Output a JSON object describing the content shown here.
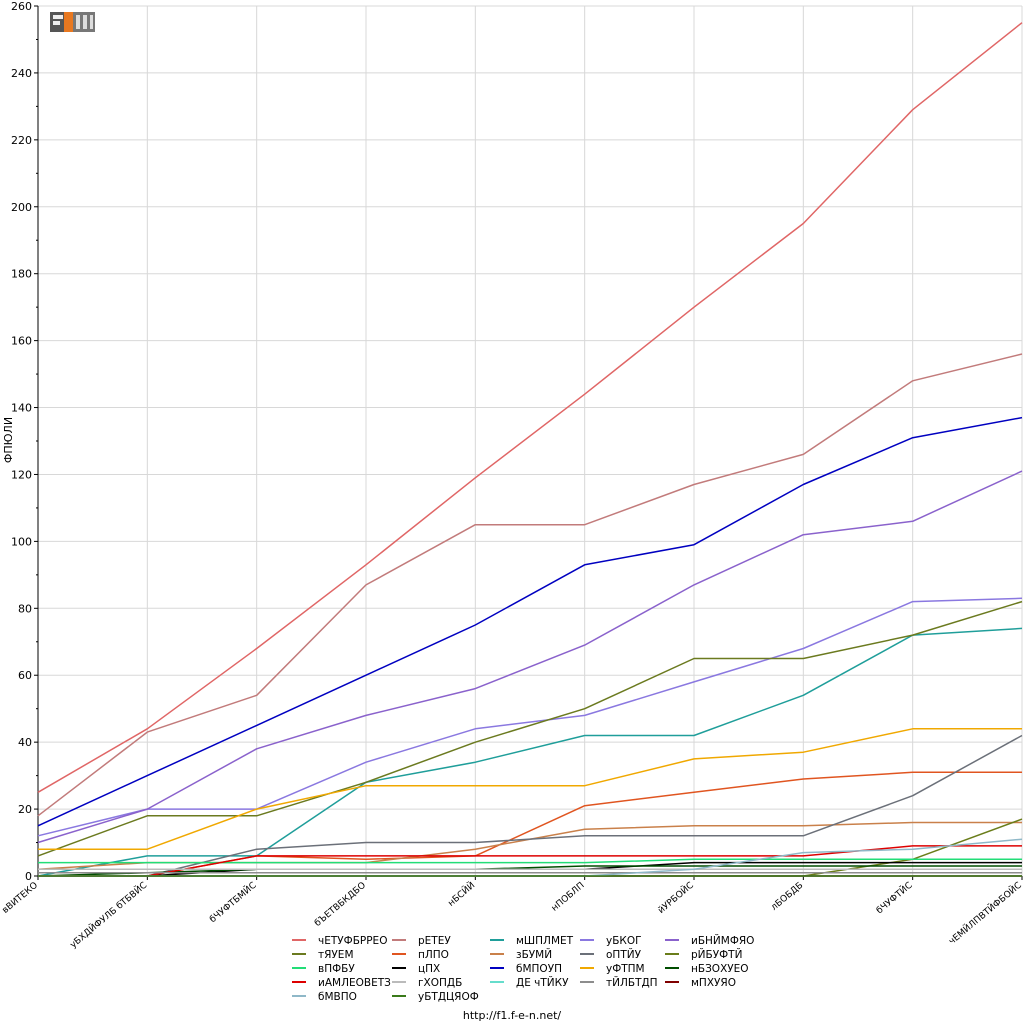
{
  "footer": {
    "url": "http://f1.f-e-n.net/"
  },
  "logo": {
    "icon": "fen-logo-icon"
  },
  "chart_data": {
    "type": "line",
    "ylabel": "ФПЮЛИ",
    "xlabel": "",
    "ylim": [
      0,
      260
    ],
    "yticks": [
      0,
      20,
      40,
      60,
      80,
      100,
      120,
      140,
      160,
      180,
      200,
      220,
      240,
      260
    ],
    "grid": true,
    "legend_position": "bottom",
    "categories": [
      "вВИТЕКО",
      "уБХДЙФУЛБ бТБВЙС",
      "бЧУФТБМЙС",
      "бЪЕТВБКДБО",
      "нБСЙЙ",
      "нПОБЛП",
      "йУРБОЙС",
      "лБОБДБ",
      "бЧУФТЙС",
      "чЕМЙЛПВТЙФБОЙС"
    ],
    "series": [
      {
        "name": "чЕТУФБРРЕО",
        "color": "#e06666",
        "values": [
          25,
          44,
          68,
          93,
          119,
          144,
          170,
          195,
          229,
          255
        ]
      },
      {
        "name": "рЕТЕУ",
        "color": "#c27b7b",
        "values": [
          18,
          43,
          54,
          87,
          105,
          105,
          117,
          126,
          148,
          156
        ]
      },
      {
        "name": "мШПЛМЕТ",
        "color": "#1f9e9a",
        "values": [
          0,
          6,
          6,
          28,
          34,
          42,
          42,
          54,
          72,
          74
        ]
      },
      {
        "name": "уБКОГ",
        "color": "#8a78e0",
        "values": [
          12,
          20,
          20,
          34,
          44,
          48,
          58,
          68,
          82,
          83
        ]
      },
      {
        "name": "иБНЙМФЯО",
        "color": "#8a62cc",
        "values": [
          10,
          20,
          38,
          48,
          56,
          69,
          87,
          102,
          106,
          121
        ]
      },
      {
        "name": "тЯУЕМ",
        "color": "#6b7a1f",
        "values": [
          6,
          18,
          18,
          28,
          40,
          50,
          65,
          65,
          72,
          82
        ]
      },
      {
        "name": "пЛПО",
        "color": "#e05520",
        "values": [
          0,
          0,
          6,
          5,
          6,
          21,
          25,
          29,
          31,
          31
        ]
      },
      {
        "name": "зБУМЙ",
        "color": "#c9804a",
        "values": [
          2,
          4,
          4,
          4,
          8,
          14,
          15,
          15,
          16,
          16
        ]
      },
      {
        "name": "оПТЙУ",
        "color": "#6b7079",
        "values": [
          0,
          0,
          8,
          10,
          10,
          12,
          12,
          12,
          24,
          42
        ]
      },
      {
        "name": "рЙБУФТЙ",
        "color": "#6a7d1a",
        "values": [
          0,
          0,
          0,
          0,
          0,
          0,
          0,
          0,
          5,
          17
        ]
      },
      {
        "name": "вПФБУ",
        "color": "#22dd77",
        "values": [
          4,
          4,
          4,
          4,
          4,
          4,
          5,
          5,
          5,
          5
        ]
      },
      {
        "name": "цПХ",
        "color": "#000000",
        "values": [
          0,
          0,
          2,
          2,
          2,
          2,
          4,
          4,
          4,
          4
        ]
      },
      {
        "name": "бМПОУП",
        "color": "#0000c0",
        "values": [
          15,
          30,
          45,
          60,
          75,
          93,
          99,
          117,
          131,
          137
        ]
      },
      {
        "name": "уФТПМ",
        "color": "#f0a800",
        "values": [
          8,
          8,
          20,
          27,
          27,
          27,
          35,
          37,
          44,
          44
        ]
      },
      {
        "name": "нБЗОХУЕО",
        "color": "#004d00",
        "values": [
          0,
          1,
          2,
          2,
          2,
          3,
          3,
          3,
          3,
          3
        ]
      },
      {
        "name": "иАМЛЕОВЕТЗ",
        "color": "#dd0000",
        "values": [
          0,
          0,
          6,
          6,
          6,
          6,
          6,
          6,
          9,
          9
        ]
      },
      {
        "name": "гХОПДБ",
        "color": "#bbbbbb",
        "values": [
          2,
          2,
          2,
          2,
          2,
          2,
          2,
          2,
          2,
          2
        ]
      },
      {
        "name": "ДЕ чТЙКУ",
        "color": "#66ddcc",
        "values": [
          0,
          0,
          0,
          0,
          0,
          0,
          0,
          0,
          0,
          0
        ]
      },
      {
        "name": "тЙЛБТДП",
        "color": "#8d8d8d",
        "values": [
          1,
          1,
          1,
          1,
          1,
          1,
          1,
          1,
          1,
          1
        ]
      },
      {
        "name": "мПХУЯО",
        "color": "#800000",
        "values": [
          0,
          0,
          0,
          0,
          0,
          0,
          0,
          0,
          0,
          0
        ]
      },
      {
        "name": "бМВПО",
        "color": "#8fb8c8",
        "values": [
          0,
          0,
          0,
          0,
          0,
          0,
          2,
          7,
          8,
          11
        ]
      },
      {
        "name": "уБТДЦЯОФ",
        "color": "#3a7a1a",
        "values": [
          0,
          0,
          0,
          0,
          0,
          0,
          0,
          0,
          0,
          0
        ]
      }
    ],
    "legend_columns": [
      [
        "чЕТУФБРРЕО",
        "тЯУЕМ",
        "вПФБУ",
        "иАМЛЕОВЕТЗ",
        "бМВПО"
      ],
      [
        "рЕТЕУ",
        "пЛПО",
        "цПХ",
        "гХОПДБ",
        "уБТДЦЯОФ"
      ],
      [
        "мШПЛМЕТ",
        "зБУМЙ",
        "бМПОУП",
        "ДЕ чТЙКУ"
      ],
      [
        "уБКОГ",
        "оПТЙУ",
        "уФТПМ",
        "тЙЛБТДП"
      ],
      [
        "иБНЙМФЯО",
        "рЙБУФТЙ",
        "нБЗОХУЕО",
        "мПХУЯО"
      ]
    ]
  }
}
